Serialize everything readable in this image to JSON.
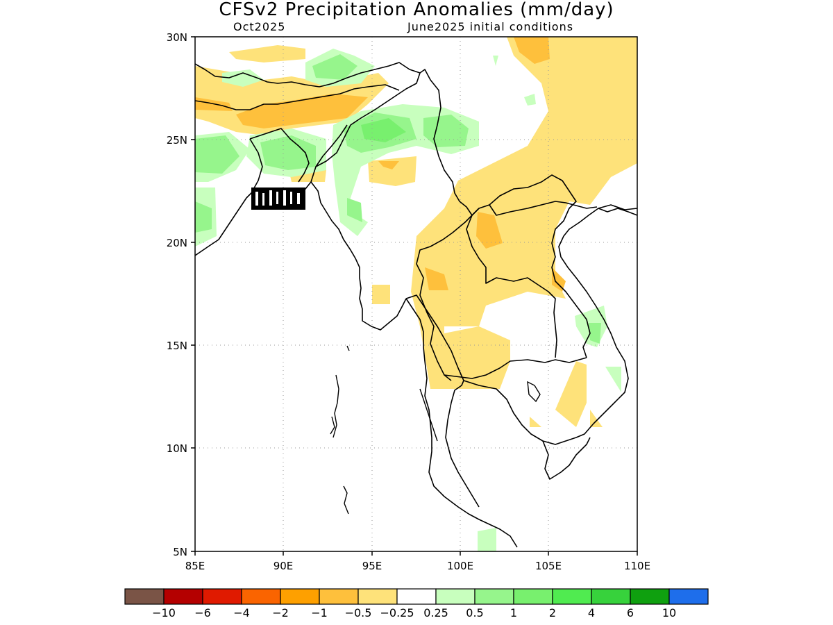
{
  "title": "CFSv2 Precipitation Anomalies (mm/day)",
  "subtitle_left": "Oct2025",
  "subtitle_right": "June2025 initial conditions",
  "axes": {
    "lon_ticks": [
      "85E",
      "90E",
      "95E",
      "100E",
      "105E",
      "110E"
    ],
    "lat_ticks": [
      "30N",
      "25N",
      "20N",
      "15N",
      "10N",
      "5N"
    ]
  },
  "colorbar": {
    "colors": [
      "#7a5446",
      "#b40000",
      "#e01a00",
      "#fa6400",
      "#fea000",
      "#fec03c",
      "#fee27a",
      "#ffffff",
      "#c8ffbe",
      "#96f58c",
      "#78f06e",
      "#50eb50",
      "#37d23c",
      "#0fa00f",
      "#1e6eeb"
    ],
    "labels": [
      "−10",
      "−6",
      "−4",
      "−2",
      "−1",
      "−0.5",
      "−0.25",
      "0.25",
      "0.5",
      "1",
      "2",
      "4",
      "6",
      "10"
    ]
  },
  "legend_colors": {
    "light_orange": "#fee27a",
    "orange": "#fec03c",
    "light_green": "#c8ffbe",
    "green": "#96f58c",
    "mid_green": "#78f06e",
    "bright_green": "#50eb50"
  }
}
